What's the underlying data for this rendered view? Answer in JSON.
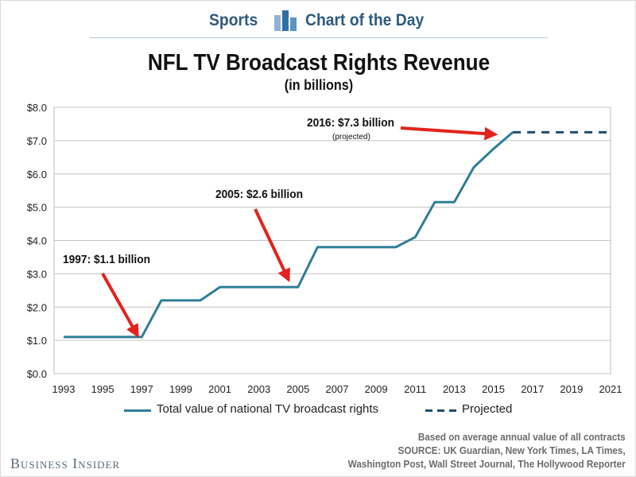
{
  "header": {
    "left_label": "Sports",
    "right_label": "Chart of the Day",
    "icon": "bar-chart-icon"
  },
  "title": "NFL TV Broadcast Rights Revenue",
  "subtitle": "(in billions)",
  "chart_data": {
    "type": "line",
    "title": "NFL TV Broadcast Rights Revenue",
    "subtitle": "(in billions)",
    "xlabel": "",
    "ylabel": "",
    "xlim": [
      1993,
      2021
    ],
    "ylim": [
      0,
      8
    ],
    "x_ticks": [
      1993,
      1995,
      1997,
      1999,
      2001,
      2003,
      2005,
      2007,
      2009,
      2011,
      2013,
      2015,
      2017,
      2019,
      2021
    ],
    "y_ticks": [
      0,
      1,
      2,
      3,
      4,
      5,
      6,
      7,
      8
    ],
    "y_tick_labels": [
      "$0.0",
      "$1.0",
      "$2.0",
      "$3.0",
      "$4.0",
      "$5.0",
      "$6.0",
      "$7.0",
      "$8.0"
    ],
    "grid": "horizontal",
    "legend_position": "bottom",
    "series": [
      {
        "name": "Total value of national TV broadcast rights",
        "style": "solid",
        "color": "#2e7d96",
        "x": [
          1993,
          1994,
          1995,
          1996,
          1997,
          1998,
          1999,
          2000,
          2001,
          2002,
          2003,
          2004,
          2005,
          2006,
          2007,
          2008,
          2009,
          2010,
          2011,
          2012,
          2013,
          2014,
          2015,
          2016
        ],
        "values": [
          1.1,
          1.1,
          1.1,
          1.1,
          1.1,
          2.2,
          2.2,
          2.2,
          2.6,
          2.6,
          2.6,
          2.6,
          2.6,
          3.8,
          3.8,
          3.8,
          3.8,
          3.8,
          4.1,
          5.15,
          5.15,
          6.2,
          6.75,
          7.25
        ]
      },
      {
        "name": "Projected",
        "style": "dashed",
        "color": "#1f4e6b",
        "x": [
          2016,
          2017,
          2018,
          2019,
          2020,
          2021
        ],
        "values": [
          7.25,
          7.25,
          7.25,
          7.25,
          7.25,
          7.25
        ]
      }
    ],
    "annotations": [
      {
        "text": "1997: $1.1 billion",
        "x": 1997,
        "y": 1.1
      },
      {
        "text": "2005: $2.6 billion",
        "x": 2005,
        "y": 2.6
      },
      {
        "text": "2016: $7.3 billion",
        "note": "(projected)",
        "x": 2016,
        "y": 7.25
      }
    ]
  },
  "colors": {
    "actual_line": "#2e7d96",
    "projected_line": "#1f4e6b",
    "arrow": "#e3231b",
    "header_text": "#2f5a7e"
  },
  "footer": {
    "brand": "Business Insider",
    "source_lines": [
      "Based on average annual value of all contracts",
      "SOURCE: UK Guardian, New York Times, LA Times,",
      "Washington Post, Wall Street Journal, The Hollywood Reporter"
    ]
  }
}
